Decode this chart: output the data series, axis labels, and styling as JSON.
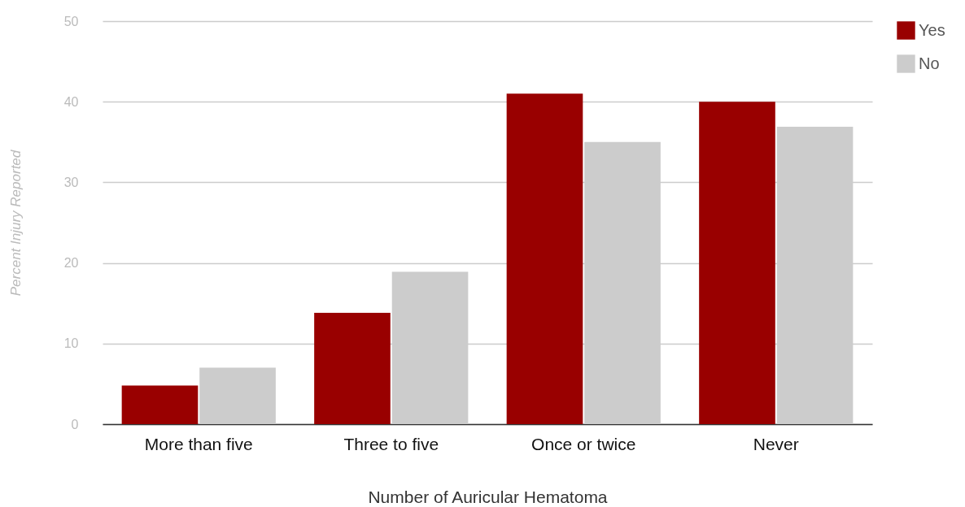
{
  "chart_data": {
    "type": "bar",
    "xlabel": "Number of Auricular Hematoma",
    "ylabel": "Percent Injury Reported",
    "categories": [
      "More than five",
      "Three to five",
      "Once or twice",
      "Never"
    ],
    "series": [
      {
        "name": "Yes",
        "color": "#990000",
        "values": [
          4.8,
          13.8,
          41,
          40
        ]
      },
      {
        "name": "No",
        "color": "#cccccc",
        "values": [
          7,
          18.9,
          35,
          36.9
        ]
      }
    ],
    "ylim": [
      0,
      50
    ],
    "yticks": [
      0,
      10,
      20,
      30,
      40,
      50
    ],
    "grid": "y",
    "legend": "top right"
  }
}
